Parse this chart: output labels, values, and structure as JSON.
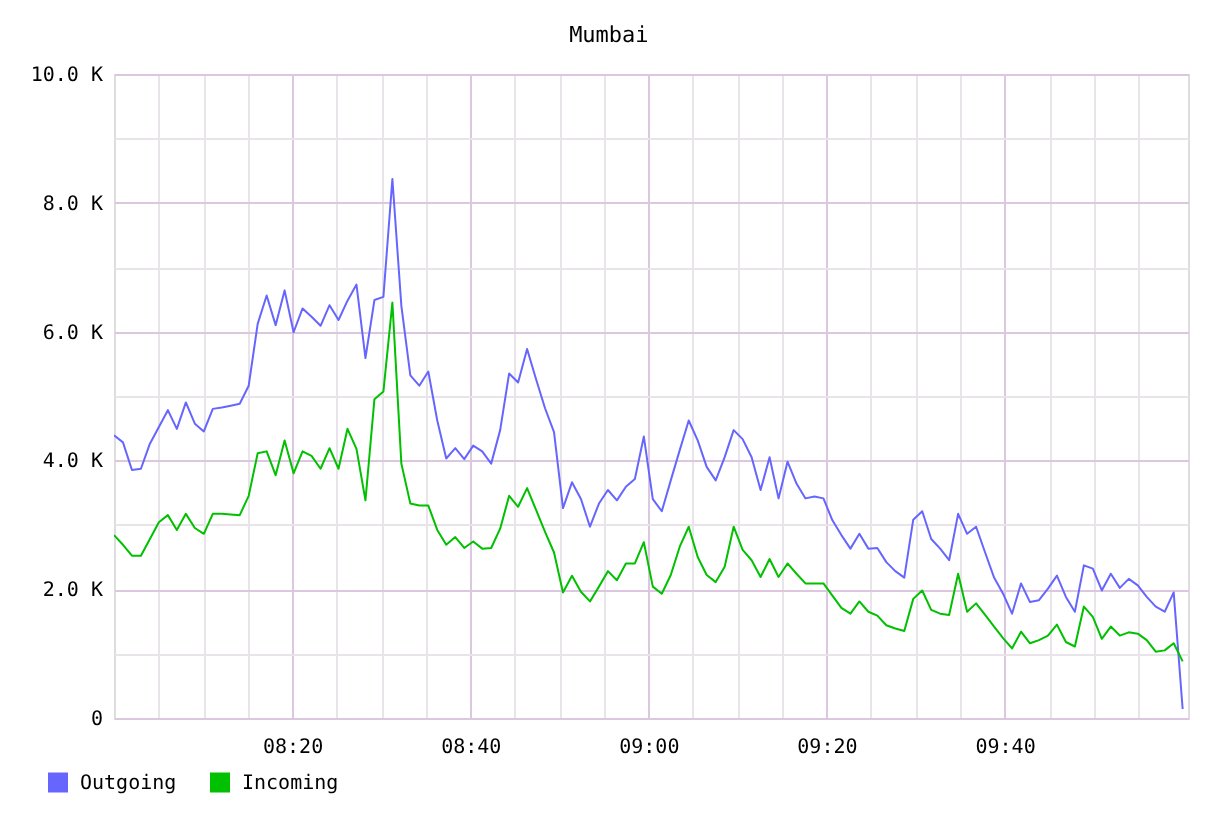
{
  "chart_data": {
    "type": "line",
    "title": "Mumbai",
    "x": [
      8,
      8.0168,
      8.0336,
      8.0504,
      8.0672,
      8.084,
      8.1008,
      8.1176,
      8.1345,
      8.1513,
      8.1681,
      8.1849,
      8.2017,
      8.2185,
      8.2353,
      8.2521,
      8.2689,
      8.2857,
      8.3025,
      8.3193,
      8.3361,
      8.3529,
      8.3697,
      8.3866,
      8.4034,
      8.4202,
      8.437,
      8.4538,
      8.4706,
      8.4874,
      8.5042,
      8.521,
      8.5378,
      8.5546,
      8.5714,
      8.5882,
      8.605,
      8.6218,
      8.6387,
      8.6555,
      8.6723,
      8.6891,
      8.7059,
      8.7227,
      8.7395,
      8.7563,
      8.7731,
      8.7899,
      8.8067,
      8.8235,
      8.8403,
      8.8571,
      8.8739,
      8.8908,
      8.9076,
      8.9244,
      8.9412,
      8.958,
      8.9748,
      8.9916,
      9.0084,
      9.0252,
      9.042,
      9.0588,
      9.0756,
      9.0924,
      9.1092,
      9.1261,
      9.1429,
      9.1597,
      9.1765,
      9.1933,
      9.2101,
      9.2269,
      9.2437,
      9.2605,
      9.2773,
      9.2941,
      9.3109,
      9.3277,
      9.3445,
      9.3613,
      9.3782,
      9.395,
      9.4118,
      9.4286,
      9.4454,
      9.4622,
      9.479,
      9.4958,
      9.5126,
      9.5294,
      9.5462,
      9.563,
      9.5798,
      9.5966,
      9.6134,
      9.6303,
      9.6471,
      9.6639,
      9.6807,
      9.6975,
      9.7143,
      9.7311,
      9.7479,
      9.7647,
      9.7815,
      9.7983,
      9.8151,
      9.8319,
      9.8487,
      9.8655,
      9.8824,
      9.8992,
      9.916,
      9.9328,
      9.9496,
      9.9664,
      9.9832,
      10
    ],
    "series": [
      {
        "name": "Outgoing",
        "color": "#6666ff",
        "values": [
          4390,
          4280,
          3850,
          3870,
          4260,
          4520,
          4780,
          4490,
          4900,
          4570,
          4450,
          4800,
          4820,
          4850,
          4880,
          5160,
          6120,
          6560,
          6100,
          6640,
          5990,
          6360,
          6230,
          6090,
          6410,
          6180,
          6480,
          6730,
          5590,
          6490,
          6540,
          8370,
          6400,
          5320,
          5160,
          5380,
          4620,
          4030,
          4190,
          4020,
          4230,
          4140,
          3950,
          4470,
          5350,
          5210,
          5730,
          5260,
          4810,
          4440,
          3260,
          3660,
          3400,
          2970,
          3330,
          3540,
          3380,
          3590,
          3710,
          4370,
          3400,
          3210,
          3690,
          4160,
          4620,
          4310,
          3900,
          3690,
          4050,
          4470,
          4330,
          4050,
          3540,
          4050,
          3410,
          3980,
          3640,
          3410,
          3440,
          3410,
          3070,
          2840,
          2630,
          2860,
          2630,
          2640,
          2420,
          2280,
          2180,
          3080,
          3210,
          2780,
          2630,
          2450,
          3170,
          2860,
          2970,
          2570,
          2180,
          1930,
          1620,
          2090,
          1800,
          1830,
          2010,
          2210,
          1880,
          1650,
          2370,
          2320,
          1980,
          2240,
          2020,
          2160,
          2060,
          1880,
          1730,
          1650,
          1950,
          140
        ]
      },
      {
        "name": "Incoming",
        "color": "#00c000",
        "values": [
          2840,
          2690,
          2520,
          2520,
          2780,
          3040,
          3150,
          2920,
          3170,
          2950,
          2860,
          3170,
          3170,
          3160,
          3150,
          3450,
          4110,
          4140,
          3770,
          4310,
          3800,
          4140,
          4070,
          3870,
          4190,
          3870,
          4490,
          4180,
          3380,
          4950,
          5070,
          6450,
          3950,
          3330,
          3300,
          3300,
          2920,
          2690,
          2810,
          2640,
          2740,
          2630,
          2640,
          2940,
          3450,
          3280,
          3570,
          3230,
          2890,
          2570,
          1950,
          2210,
          1960,
          1810,
          2040,
          2280,
          2140,
          2400,
          2400,
          2730,
          2040,
          1930,
          2220,
          2660,
          2970,
          2500,
          2220,
          2110,
          2350,
          2970,
          2610,
          2450,
          2190,
          2470,
          2190,
          2400,
          2240,
          2090,
          2090,
          2090,
          1900,
          1710,
          1620,
          1810,
          1650,
          1590,
          1440,
          1390,
          1350,
          1850,
          1980,
          1680,
          1620,
          1600,
          2240,
          1650,
          1780,
          1600,
          1420,
          1240,
          1080,
          1340,
          1160,
          1210,
          1280,
          1450,
          1180,
          1110,
          1730,
          1570,
          1230,
          1420,
          1280,
          1330,
          1310,
          1210,
          1030,
          1050,
          1160,
          880
        ]
      }
    ],
    "xlim": [
      8,
      10.01
    ],
    "xticks": [
      {
        "value": 8.0833,
        "label": null
      },
      {
        "value": 8.1667,
        "label": null
      },
      {
        "value": 8.25,
        "label": null
      },
      {
        "value": 8.3333,
        "label": "08:20"
      },
      {
        "value": 8.4167,
        "label": null
      },
      {
        "value": 8.5,
        "label": null
      },
      {
        "value": 8.5833,
        "label": null
      },
      {
        "value": 8.6667,
        "label": "08:40"
      },
      {
        "value": 8.75,
        "label": null
      },
      {
        "value": 8.8333,
        "label": null
      },
      {
        "value": 8.9167,
        "label": null
      },
      {
        "value": 9,
        "label": "09:00"
      },
      {
        "value": 9.0833,
        "label": null
      },
      {
        "value": 9.1667,
        "label": null
      },
      {
        "value": 9.25,
        "label": null
      },
      {
        "value": 9.3333,
        "label": "09:20"
      },
      {
        "value": 9.4167,
        "label": null
      },
      {
        "value": 9.5,
        "label": null
      },
      {
        "value": 9.5833,
        "label": null
      },
      {
        "value": 9.6667,
        "label": "09:40"
      },
      {
        "value": 9.75,
        "label": null
      },
      {
        "value": 9.8333,
        "label": null
      },
      {
        "value": 9.9167,
        "label": null
      }
    ],
    "ylim": [
      0,
      10000
    ],
    "yticks": [
      0,
      {
        "value": 1000,
        "label": null
      },
      {
        "value": 2000,
        "label": "2.0 K"
      },
      {
        "value": 3000,
        "label": null
      },
      {
        "value": 4000,
        "label": "4.0 K"
      },
      {
        "value": 5000,
        "label": null
      },
      {
        "value": 6000,
        "label": "6.0 K"
      },
      {
        "value": 7000,
        "label": null
      },
      {
        "value": 8000,
        "label": "8.0 K"
      },
      {
        "value": 9000,
        "label": null
      },
      {
        "value": 10000,
        "label": "10.0 K"
      }
    ],
    "grid": true,
    "legend": "bottom left",
    "line_style": "solid"
  }
}
